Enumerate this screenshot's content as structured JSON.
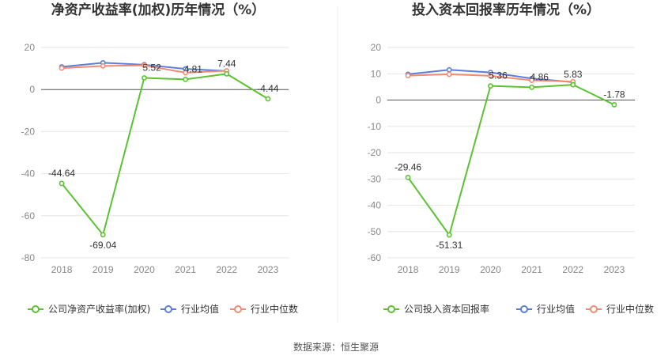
{
  "colors": {
    "company": "#5cc230",
    "industry_avg": "#5b7fd6",
    "industry_median": "#f08c73",
    "grid": "#e6e6e6",
    "axis_text": "#888888",
    "title": "#333333"
  },
  "source_text": "数据来源：恒生聚源",
  "chart_data": [
    {
      "type": "line",
      "title": "净资产收益率(加权)历年情况（%）",
      "categories": [
        "2018",
        "2019",
        "2020",
        "2021",
        "2022",
        "2023"
      ],
      "ylim": [
        -80,
        20
      ],
      "yticks": [
        20,
        0,
        -20,
        -40,
        -60,
        -80
      ],
      "series": [
        {
          "name": "公司净资产收益率(加权)",
          "role": "company",
          "values": [
            -44.64,
            -69.04,
            5.52,
            4.81,
            7.44,
            -4.44
          ],
          "labels": [
            "-44.64",
            "-69.04",
            "5.52",
            "4.81",
            "7.44",
            "-4.44"
          ]
        },
        {
          "name": "行业均值",
          "role": "industry_avg",
          "values": [
            10.8,
            12.7,
            11.8,
            9.8,
            8.8,
            null
          ]
        },
        {
          "name": "行业中位数",
          "role": "industry_median",
          "values": [
            10.2,
            11.2,
            11.5,
            8.0,
            8.9,
            null
          ]
        }
      ]
    },
    {
      "type": "line",
      "title": "投入资本回报率历年情况（%）",
      "categories": [
        "2018",
        "2019",
        "2020",
        "2021",
        "2022",
        "2023"
      ],
      "ylim": [
        -60,
        20
      ],
      "yticks": [
        20,
        10,
        0,
        -10,
        -20,
        -30,
        -40,
        -50,
        -60
      ],
      "series": [
        {
          "name": "公司投入资本回报率",
          "role": "company",
          "values": [
            -29.46,
            -51.31,
            5.36,
            4.86,
            5.83,
            -1.78
          ],
          "labels": [
            "-29.46",
            "-51.31",
            "5.36",
            "4.86",
            "5.83",
            "-1.78"
          ]
        },
        {
          "name": "行业均值",
          "role": "industry_avg",
          "values": [
            9.8,
            11.5,
            10.5,
            8.2,
            6.8,
            null
          ]
        },
        {
          "name": "行业中位数",
          "role": "industry_median",
          "values": [
            9.3,
            9.8,
            9.2,
            7.5,
            7.0,
            null
          ]
        }
      ]
    }
  ]
}
